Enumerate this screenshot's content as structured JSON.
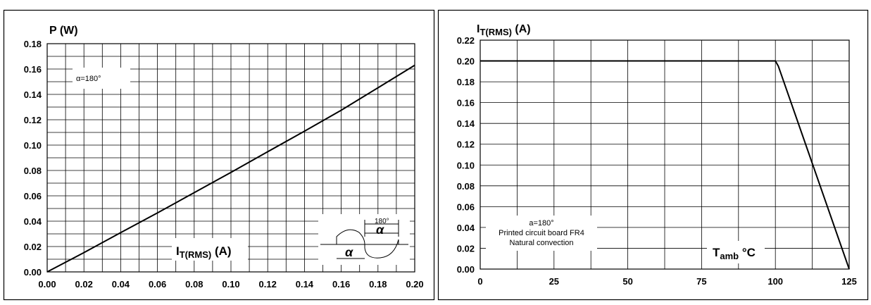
{
  "chart_data": [
    {
      "type": "line",
      "ylabel": "P (W)",
      "xlabel": "I",
      "xlabel_sub": "T(RMS)",
      "xlabel_tail": " (A)",
      "xlim": [
        0,
        0.2
      ],
      "ylim": [
        0,
        0.18
      ],
      "x_ticks": [
        "0.00",
        "0.02",
        "0.04",
        "0.06",
        "0.08",
        "0.10",
        "0.12",
        "0.14",
        "0.16",
        "0.18",
        "0.20"
      ],
      "y_ticks": [
        "0.00",
        "0.02",
        "0.04",
        "0.06",
        "0.08",
        "0.10",
        "0.12",
        "0.14",
        "0.16",
        "0.18"
      ],
      "annotation": "α=180°",
      "inset_labels": [
        "180°",
        "α",
        "α"
      ],
      "grid": true,
      "series": [
        {
          "x": [
            0,
            0.02,
            0.04,
            0.06,
            0.08,
            0.1,
            0.12,
            0.14,
            0.16,
            0.18,
            0.2
          ],
          "y": [
            0,
            0.0152,
            0.031,
            0.0465,
            0.0625,
            0.0785,
            0.0948,
            0.111,
            0.1275,
            0.1452,
            0.163
          ]
        }
      ]
    },
    {
      "type": "line",
      "ylabel": "I",
      "ylabel_sub": "T(RMS)",
      "ylabel_tail": " (A)",
      "xlabel": "T",
      "xlabel_sub": "amb",
      "xlabel_tail": " °C",
      "xlim": [
        0,
        125
      ],
      "ylim": [
        0,
        0.22
      ],
      "x_ticks": [
        "0",
        "25",
        "50",
        "75",
        "100",
        "125"
      ],
      "y_ticks": [
        "0.00",
        "0.02",
        "0.04",
        "0.06",
        "0.08",
        "0.10",
        "0.12",
        "0.14",
        "0.16",
        "0.18",
        "0.20",
        "0.22"
      ],
      "annotation_lines": [
        "a=180°",
        "Printed circuit board FR4",
        "Natural convection"
      ],
      "grid": true,
      "series": [
        {
          "x": [
            0,
            100,
            101,
            125
          ],
          "y": [
            0.2,
            0.2,
            0.195,
            0
          ]
        }
      ]
    }
  ]
}
